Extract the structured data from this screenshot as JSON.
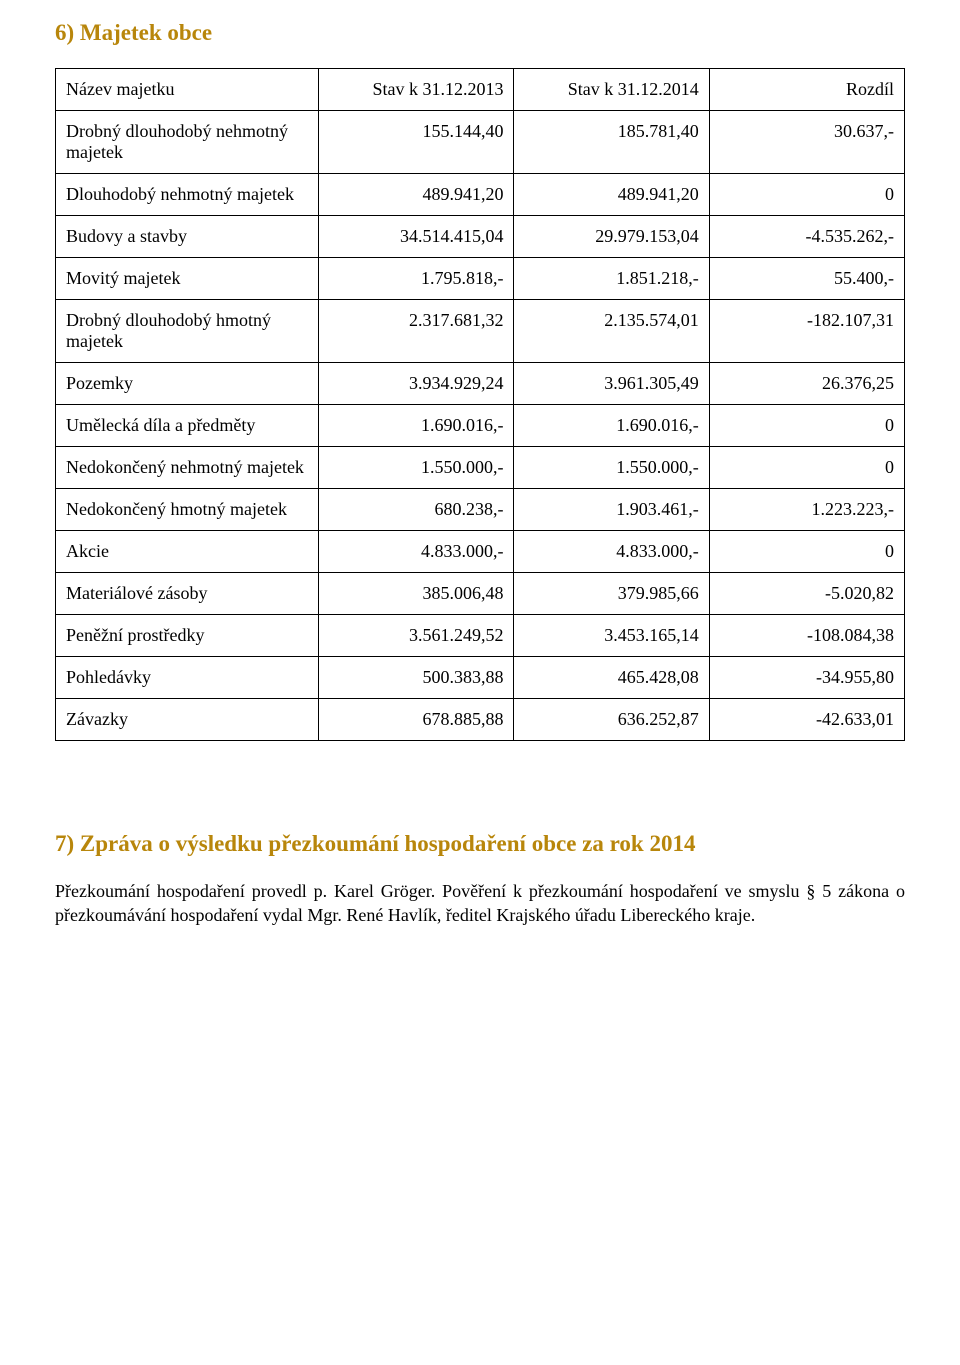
{
  "section6": {
    "title": "6) Majetek obce",
    "table": {
      "headers": [
        "Název majetku",
        "Stav k 31.12.2013",
        "Stav k 31.12.2014",
        "Rozdíl"
      ],
      "rows": [
        [
          "Drobný dlouhodobý nehmotný majetek",
          "155.144,40",
          "185.781,40",
          "30.637,-"
        ],
        [
          "Dlouhodobý nehmotný majetek",
          "489.941,20",
          "489.941,20",
          "0"
        ],
        [
          "Budovy a stavby",
          "34.514.415,04",
          "29.979.153,04",
          "-4.535.262,-"
        ],
        [
          "Movitý majetek",
          "1.795.818,-",
          "1.851.218,-",
          "55.400,-"
        ],
        [
          "Drobný dlouhodobý hmotný majetek",
          "2.317.681,32",
          "2.135.574,01",
          "-182.107,31"
        ],
        [
          "Pozemky",
          "3.934.929,24",
          "3.961.305,49",
          "26.376,25"
        ],
        [
          "Umělecká díla a předměty",
          "1.690.016,-",
          "1.690.016,-",
          "0"
        ],
        [
          "Nedokončený nehmotný majetek",
          "1.550.000,-",
          "1.550.000,-",
          "0"
        ],
        [
          "Nedokončený hmotný majetek",
          "680.238,-",
          "1.903.461,-",
          "1.223.223,-"
        ],
        [
          "Akcie",
          "4.833.000,-",
          "4.833.000,-",
          "0"
        ],
        [
          "Materiálové zásoby",
          "385.006,48",
          "379.985,66",
          "-5.020,82"
        ],
        [
          "Peněžní prostředky",
          "3.561.249,52",
          "3.453.165,14",
          "-108.084,38"
        ],
        [
          "Pohledávky",
          "500.383,88",
          "465.428,08",
          "-34.955,80"
        ],
        [
          "Závazky",
          "678.885,88",
          "636.252,87",
          "-42.633,01"
        ]
      ]
    }
  },
  "section7": {
    "title": "7) Zpráva o výsledku přezkoumání hospodaření obce za rok 2014",
    "paragraph": "Přezkoumání hospodaření provedl p. Karel Gröger. Pověření k přezkoumání hospodaření ve smyslu § 5 zákona o přezkoumávání hospodaření vydal Mgr. René Havlík, ředitel Krajského úřadu Libereckého kraje."
  },
  "styles": {
    "heading_color": "#b8860b",
    "text_color": "#000000",
    "background_color": "#ffffff",
    "border_color": "#000000",
    "font_family": "Times New Roman",
    "body_fontsize": 18,
    "heading_fontsize": 23
  }
}
